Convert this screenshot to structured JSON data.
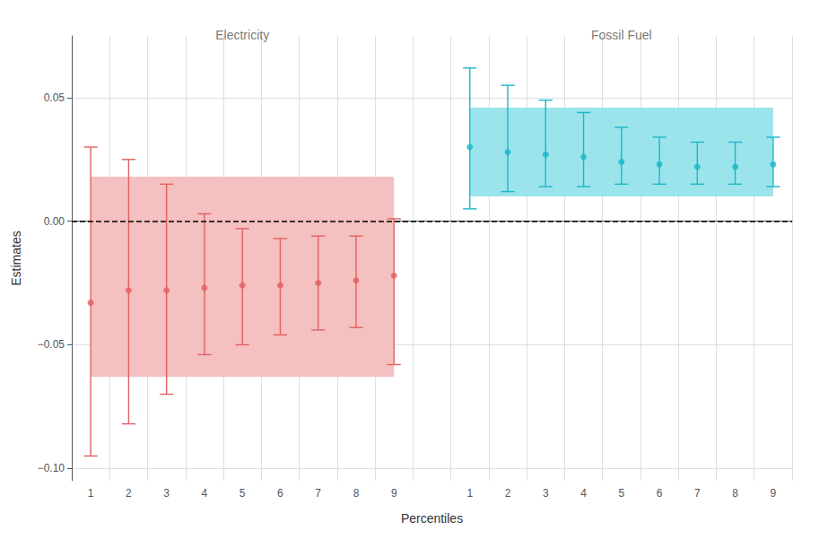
{
  "chart_data": {
    "type": "scatter",
    "xlabel": "Percentiles",
    "ylabel": "Estimates",
    "categories": [
      "1",
      "2",
      "3",
      "4",
      "5",
      "6",
      "7",
      "8",
      "9",
      null,
      "1",
      "2",
      "3",
      "4",
      "5",
      "6",
      "7",
      "8",
      "9"
    ],
    "series": [
      {
        "color": "#e06060",
        "band_color": "#f5c0c0",
        "values": [
          -0.033,
          -0.028,
          -0.028,
          -0.027,
          -0.026,
          -0.026,
          -0.025,
          -0.024,
          -0.022,
          null,
          null,
          null,
          null,
          null,
          null,
          null,
          null,
          null,
          null
        ],
        "ci_low": [
          -0.095,
          -0.082,
          -0.07,
          -0.054,
          -0.05,
          -0.046,
          -0.044,
          -0.043,
          -0.058,
          null,
          null,
          null,
          null,
          null,
          null,
          null,
          null,
          null,
          null
        ],
        "ci_high": [
          0.03,
          0.025,
          0.015,
          0.003,
          -0.003,
          -0.007,
          -0.006,
          -0.006,
          0.001,
          null,
          null,
          null,
          null,
          null,
          null,
          null,
          null,
          null,
          null
        ],
        "band_low": [
          -0.063,
          null,
          null,
          null,
          null,
          null,
          null,
          null,
          -0.063,
          null,
          null,
          null,
          null,
          null,
          null,
          null,
          null,
          null,
          null
        ],
        "band_high": [
          0.018,
          null,
          null,
          null,
          null,
          null,
          null,
          null,
          0.018,
          null,
          null,
          null,
          null,
          null,
          null,
          null,
          null,
          null,
          null
        ]
      },
      {
        "color": "#19b8c8",
        "band_color": "#9ce4ec",
        "values": [
          null,
          null,
          null,
          null,
          null,
          null,
          null,
          null,
          null,
          null,
          0.03,
          0.028,
          0.027,
          0.026,
          0.024,
          0.023,
          0.022,
          0.022,
          0.023
        ],
        "ci_low": [
          null,
          null,
          null,
          null,
          null,
          null,
          null,
          null,
          null,
          null,
          0.005,
          0.012,
          0.014,
          0.014,
          0.015,
          0.015,
          0.015,
          0.015,
          0.014
        ],
        "ci_high": [
          null,
          null,
          null,
          null,
          null,
          null,
          null,
          null,
          null,
          null,
          0.062,
          0.055,
          0.049,
          0.044,
          0.038,
          0.034,
          0.032,
          0.032,
          0.034
        ],
        "band_low": [
          null,
          null,
          null,
          null,
          null,
          null,
          null,
          null,
          null,
          null,
          0.01,
          null,
          null,
          null,
          null,
          null,
          null,
          null,
          0.01
        ],
        "band_high": [
          null,
          null,
          null,
          null,
          null,
          null,
          null,
          null,
          null,
          null,
          0.046,
          null,
          null,
          null,
          null,
          null,
          null,
          null,
          0.046
        ]
      }
    ],
    "ylim": [
      -0.105,
      0.075
    ],
    "yticks": [
      {
        "value": -0.1,
        "label": "−0.10"
      },
      {
        "value": -0.05,
        "label": "−0.05"
      },
      {
        "value": 0.0,
        "label": "0.00"
      },
      {
        "value": 0.05,
        "label": "0.05"
      }
    ],
    "grid": true,
    "marker": "circle",
    "reference_lines": [
      {
        "y": 0,
        "line_style": "dashed",
        "color": "#000000"
      }
    ],
    "annotations": [
      {
        "text": "Electricity",
        "position": 5,
        "y": 0.072,
        "color": "#555555"
      },
      {
        "text": "Fossil Fuel",
        "position": 15,
        "y": 0.072,
        "color": "#555555"
      }
    ]
  }
}
